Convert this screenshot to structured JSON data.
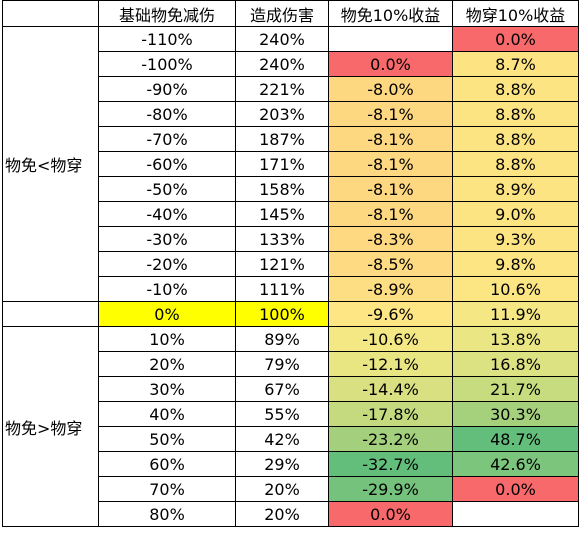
{
  "headers": [
    "",
    "基础物免减伤",
    "造成伤害",
    "物免10%收益",
    "物穿10%收益"
  ],
  "groups": {
    "lower": "物免<物穿",
    "upper": "物免>物穿"
  },
  "rows": [
    {
      "base": "-110%",
      "damage": "240%",
      "def_gain": "",
      "pen_gain": "0.0%",
      "def_color": "#ffffff",
      "pen_color": "#f8696b"
    },
    {
      "base": "-100%",
      "damage": "240%",
      "def_gain": "0.0%",
      "pen_gain": "8.7%",
      "def_color": "#f8696b",
      "pen_color": "#fde382"
    },
    {
      "base": "-90%",
      "damage": "221%",
      "def_gain": "-8.0%",
      "pen_gain": "8.8%",
      "def_color": "#fed881",
      "pen_color": "#fde483"
    },
    {
      "base": "-80%",
      "damage": "203%",
      "def_gain": "-8.1%",
      "pen_gain": "8.8%",
      "def_color": "#fed881",
      "pen_color": "#fde483"
    },
    {
      "base": "-70%",
      "damage": "187%",
      "def_gain": "-8.1%",
      "pen_gain": "8.8%",
      "def_color": "#fed881",
      "pen_color": "#fde483"
    },
    {
      "base": "-60%",
      "damage": "171%",
      "def_gain": "-8.1%",
      "pen_gain": "8.8%",
      "def_color": "#fed881",
      "pen_color": "#fde483"
    },
    {
      "base": "-50%",
      "damage": "158%",
      "def_gain": "-8.1%",
      "pen_gain": "8.9%",
      "def_color": "#fed881",
      "pen_color": "#fde483"
    },
    {
      "base": "-40%",
      "damage": "145%",
      "def_gain": "-8.1%",
      "pen_gain": "9.0%",
      "def_color": "#fed881",
      "pen_color": "#fde483"
    },
    {
      "base": "-30%",
      "damage": "133%",
      "def_gain": "-8.3%",
      "pen_gain": "9.3%",
      "def_color": "#fed981",
      "pen_color": "#fde483"
    },
    {
      "base": "-20%",
      "damage": "121%",
      "def_gain": "-8.5%",
      "pen_gain": "9.8%",
      "def_color": "#fedb82",
      "pen_color": "#fde583"
    },
    {
      "base": "-10%",
      "damage": "111%",
      "def_gain": "-8.9%",
      "pen_gain": "10.6%",
      "def_color": "#fede82",
      "pen_color": "#fbe683"
    },
    {
      "base": "0%",
      "damage": "100%",
      "def_gain": "-9.6%",
      "pen_gain": "11.9%",
      "def_color": "#fde683",
      "pen_color": "#f5e884",
      "highlight": "#ffff00"
    },
    {
      "base": "10%",
      "damage": "89%",
      "def_gain": "-10.6%",
      "pen_gain": "13.8%",
      "def_color": "#f3e884",
      "pen_color": "#eae683"
    },
    {
      "base": "20%",
      "damage": "79%",
      "def_gain": "-12.1%",
      "pen_gain": "16.8%",
      "def_color": "#e8e583",
      "pen_color": "#dce181"
    },
    {
      "base": "30%",
      "damage": "67%",
      "def_gain": "-14.4%",
      "pen_gain": "21.7%",
      "def_color": "#d9e081",
      "pen_color": "#c7db7f"
    },
    {
      "base": "40%",
      "damage": "55%",
      "def_gain": "-17.8%",
      "pen_gain": "30.3%",
      "def_color": "#c5da7f",
      "pen_color": "#a5d07c"
    },
    {
      "base": "50%",
      "damage": "42%",
      "def_gain": "-23.2%",
      "pen_gain": "48.7%",
      "def_color": "#a4cf7c",
      "pen_color": "#63be7b"
    },
    {
      "base": "60%",
      "damage": "29%",
      "def_gain": "-32.7%",
      "pen_gain": "42.6%",
      "def_color": "#63be7b",
      "pen_color": "#7cc57c"
    },
    {
      "base": "70%",
      "damage": "20%",
      "def_gain": "-29.9%",
      "pen_gain": "0.0%",
      "def_color": "#74c27c",
      "pen_color": "#f8696b"
    },
    {
      "base": "80%",
      "damage": "20%",
      "def_gain": "0.0%",
      "pen_gain": "",
      "def_color": "#f8696b",
      "pen_color": "#ffffff"
    }
  ]
}
